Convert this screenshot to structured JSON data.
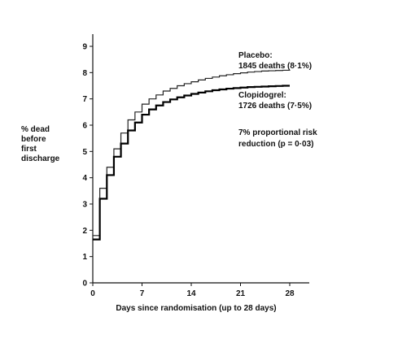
{
  "chart_data": {
    "type": "line",
    "step": true,
    "title": "",
    "xlabel": "Days since randomisation (up to 28 days)",
    "ylabel": [
      "% dead",
      "before",
      "first",
      "discharge"
    ],
    "xlim": [
      0,
      28
    ],
    "ylim": [
      0,
      9
    ],
    "xticks": [
      0,
      7,
      14,
      21,
      28
    ],
    "yticks": [
      0,
      1,
      2,
      3,
      4,
      5,
      6,
      7,
      8,
      9
    ],
    "grid": false,
    "legend": "inline-right",
    "series": [
      {
        "name": "Placebo",
        "label_lines": [
          "Placebo:",
          "1845 deaths (8·1%)"
        ],
        "color": "#222222",
        "stroke": "thin",
        "x": [
          0,
          1,
          2,
          3,
          4,
          5,
          6,
          7,
          8,
          9,
          10,
          11,
          12,
          13,
          14,
          15,
          16,
          17,
          18,
          19,
          20,
          21,
          22,
          23,
          24,
          25,
          26,
          27,
          28
        ],
        "y": [
          1.8,
          3.6,
          4.4,
          5.1,
          5.7,
          6.2,
          6.5,
          6.8,
          7.0,
          7.15,
          7.3,
          7.4,
          7.5,
          7.58,
          7.65,
          7.72,
          7.78,
          7.83,
          7.88,
          7.92,
          7.96,
          7.99,
          8.02,
          8.04,
          8.06,
          8.07,
          8.08,
          8.09,
          8.1
        ]
      },
      {
        "name": "Clopidogrel",
        "label_lines": [
          "Clopidogrel:",
          "1726 deaths (7·5%)"
        ],
        "color": "#000000",
        "stroke": "thick",
        "x": [
          0,
          1,
          2,
          3,
          4,
          5,
          6,
          7,
          8,
          9,
          10,
          11,
          12,
          13,
          14,
          15,
          16,
          17,
          18,
          19,
          20,
          21,
          22,
          23,
          24,
          25,
          26,
          27,
          28
        ],
        "y": [
          1.65,
          3.2,
          4.1,
          4.8,
          5.3,
          5.8,
          6.1,
          6.4,
          6.6,
          6.75,
          6.88,
          6.98,
          7.06,
          7.13,
          7.19,
          7.24,
          7.29,
          7.33,
          7.36,
          7.39,
          7.41,
          7.43,
          7.45,
          7.46,
          7.47,
          7.48,
          7.49,
          7.5,
          7.5
        ]
      }
    ],
    "annotations": [
      {
        "lines": [
          "7% proportional risk",
          "reduction (p = 0·03)"
        ]
      }
    ]
  }
}
